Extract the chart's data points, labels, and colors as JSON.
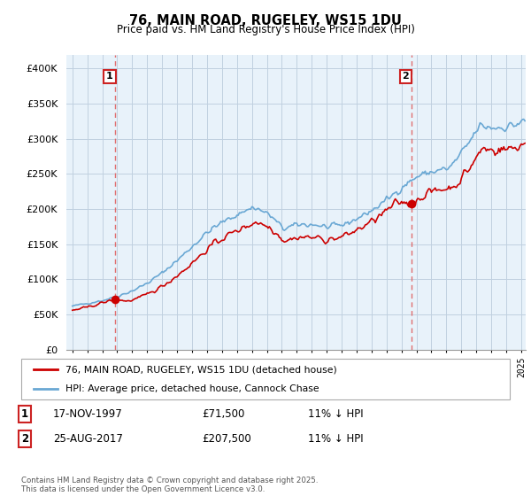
{
  "title": "76, MAIN ROAD, RUGELEY, WS15 1DU",
  "subtitle": "Price paid vs. HM Land Registry's House Price Index (HPI)",
  "legend_line1": "76, MAIN ROAD, RUGELEY, WS15 1DU (detached house)",
  "legend_line2": "HPI: Average price, detached house, Cannock Chase",
  "footer": "Contains HM Land Registry data © Crown copyright and database right 2025.\nThis data is licensed under the Open Government Licence v3.0.",
  "annotation1_label": "1",
  "annotation1_date": "17-NOV-1997",
  "annotation1_price": "£71,500",
  "annotation1_hpi": "11% ↓ HPI",
  "annotation1_year": 1997.88,
  "annotation1_value": 71500,
  "annotation2_label": "2",
  "annotation2_date": "25-AUG-2017",
  "annotation2_price": "£207,500",
  "annotation2_hpi": "11% ↓ HPI",
  "annotation2_year": 2017.65,
  "annotation2_value": 207500,
  "red_color": "#cc0000",
  "blue_color": "#6aa8d4",
  "blue_fill": "#deeaf4",
  "dashed_color": "#e06060",
  "background_color": "#ffffff",
  "chart_bg": "#e8f2fa",
  "grid_color": "#c0d0e0",
  "ylim": [
    0,
    420000
  ],
  "yticks": [
    0,
    50000,
    100000,
    150000,
    200000,
    250000,
    300000,
    350000,
    400000
  ],
  "xmin": 1995.0,
  "xmax": 2025.3
}
